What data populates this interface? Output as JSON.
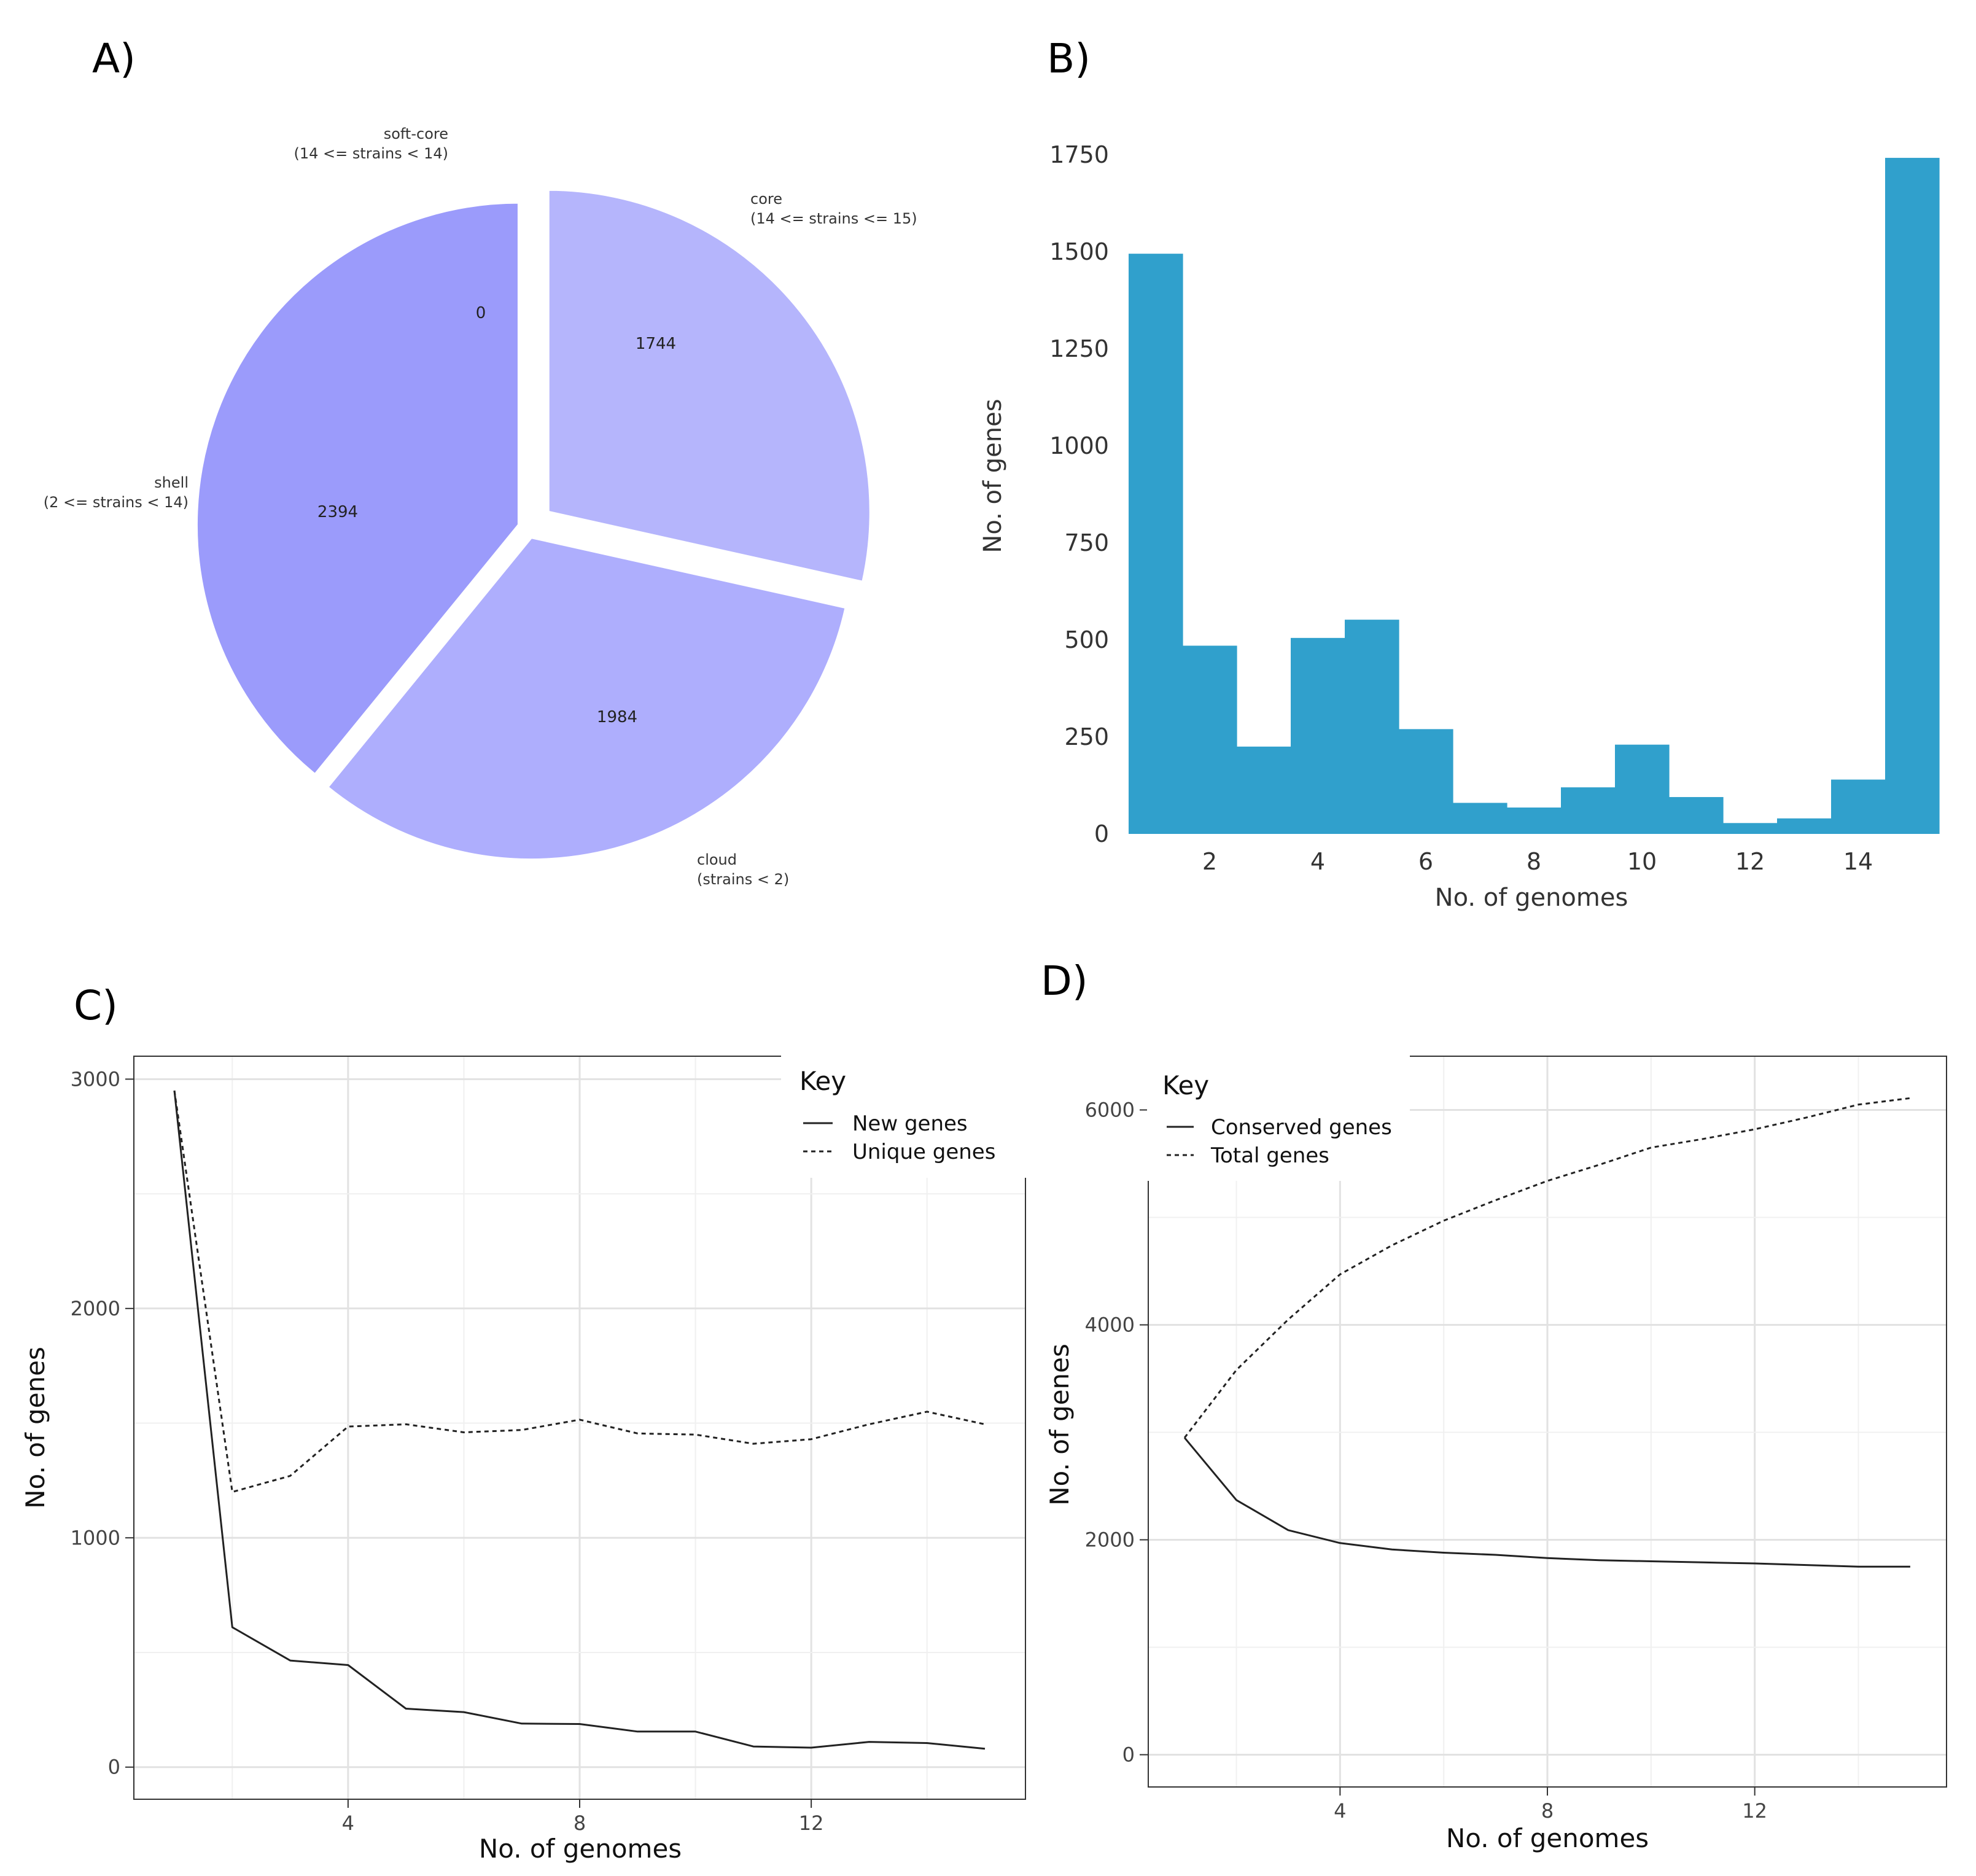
{
  "panels": {
    "a": "A)",
    "b": "B)",
    "c": "C)",
    "d": "D)"
  },
  "colors": {
    "core": "#b5b5fc",
    "soft_core": "#c3c3ff",
    "shell": "#9b9bfb",
    "cloud": "#aeaefd",
    "bars": "#30a0cc",
    "line": "#222222"
  },
  "chart_data": [
    {
      "type": "pie",
      "panel": "A)",
      "slices": [
        {
          "key": "core",
          "label_line1": "core",
          "label_line2": "(14 <= strains <= 15)",
          "value": 1744,
          "value_label": "1744"
        },
        {
          "key": "cloud",
          "label_line1": "cloud",
          "label_line2": "(strains < 2)",
          "value": 1984,
          "value_label": "1984"
        },
        {
          "key": "shell",
          "label_line1": "shell",
          "label_line2": "(2 <= strains < 14)",
          "value": 2394,
          "value_label": "2394"
        },
        {
          "key": "soft_core",
          "label_line1": "soft-core",
          "label_line2": "(14 <= strains < 14)",
          "value": 0,
          "value_label": "0"
        }
      ]
    },
    {
      "type": "bar",
      "panel": "B)",
      "categories": [
        1,
        2,
        3,
        4,
        5,
        6,
        7,
        8,
        9,
        10,
        11,
        12,
        13,
        14,
        15
      ],
      "values": [
        1495,
        485,
        225,
        505,
        552,
        270,
        80,
        68,
        120,
        230,
        95,
        28,
        40,
        140,
        1742
      ],
      "xlabel": "No. of genomes",
      "ylabel": "No. of genes",
      "xlim": [
        0.5,
        15.5
      ],
      "ylim": [
        0,
        1750
      ],
      "xticks": [
        2,
        4,
        6,
        8,
        10,
        12,
        14
      ],
      "xtick_labels": [
        "2",
        "4",
        "6",
        "8",
        "10",
        "12",
        "14"
      ],
      "yticks": [
        0,
        250,
        500,
        750,
        1000,
        1250,
        1500,
        1750
      ],
      "ytick_labels": [
        "0",
        "250",
        "500",
        "750",
        "1000",
        "1250",
        "1500",
        "1750"
      ]
    },
    {
      "type": "line",
      "panel": "C)",
      "x": [
        1,
        2,
        3,
        4,
        5,
        6,
        7,
        8,
        9,
        10,
        11,
        12,
        13,
        14,
        15
      ],
      "series": [
        {
          "name": "New genes",
          "style": "solid",
          "values": [
            2950,
            610,
            465,
            445,
            255,
            240,
            190,
            188,
            155,
            155,
            90,
            85,
            110,
            105,
            80
          ]
        },
        {
          "name": "Unique genes",
          "style": "dashed",
          "values": [
            2950,
            1200,
            1270,
            1485,
            1495,
            1460,
            1470,
            1515,
            1455,
            1450,
            1410,
            1430,
            1495,
            1550,
            1495
          ]
        }
      ],
      "xlabel": "No. of genomes",
      "ylabel": "No. of genes",
      "xlim": [
        0.3,
        15.7
      ],
      "ylim": [
        -140,
        3100
      ],
      "xticks": [
        4,
        8,
        12
      ],
      "xtick_labels": [
        "4",
        "8",
        "12"
      ],
      "yticks": [
        0,
        1000,
        2000,
        3000
      ],
      "ytick_labels": [
        "0",
        "1000",
        "2000",
        "3000"
      ],
      "legend_title": "Key",
      "legend_items": [
        "New genes",
        "Unique genes"
      ],
      "legend_position": "top-right"
    },
    {
      "type": "line",
      "panel": "D)",
      "x": [
        1,
        2,
        3,
        4,
        5,
        6,
        7,
        8,
        9,
        10,
        11,
        12,
        13,
        14,
        15
      ],
      "series": [
        {
          "name": "Conserved genes",
          "style": "solid",
          "values": [
            2950,
            2370,
            2090,
            1970,
            1910,
            1880,
            1860,
            1830,
            1810,
            1800,
            1790,
            1780,
            1765,
            1750,
            1750
          ]
        },
        {
          "name": "Total genes",
          "style": "dashed",
          "values": [
            2950,
            3580,
            4050,
            4470,
            4740,
            4970,
            5160,
            5340,
            5490,
            5650,
            5730,
            5820,
            5930,
            6050,
            6110
          ]
        }
      ],
      "xlabel": "No. of genomes",
      "ylabel": "No. of genes",
      "xlim": [
        0.3,
        15.7
      ],
      "ylim": [
        -300,
        6500
      ],
      "xticks": [
        4,
        8,
        12
      ],
      "xtick_labels": [
        "4",
        "8",
        "12"
      ],
      "yticks": [
        0,
        2000,
        4000,
        6000
      ],
      "ytick_labels": [
        "0",
        "2000",
        "4000",
        "6000"
      ],
      "legend_title": "Key",
      "legend_items": [
        "Conserved genes",
        "Total genes"
      ],
      "legend_position": "top-left"
    }
  ]
}
